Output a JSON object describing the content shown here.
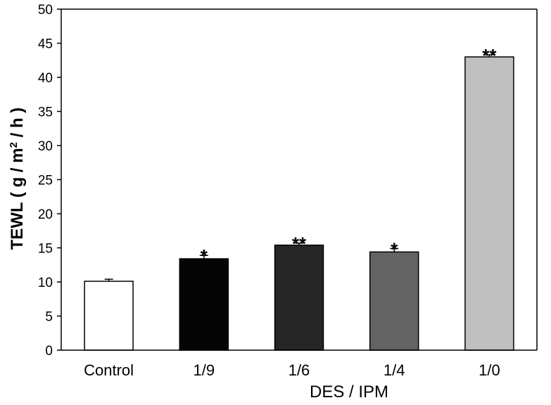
{
  "chart_data": {
    "type": "bar",
    "categories": [
      "Control",
      "1/9",
      "1/6",
      "1/4",
      "1/0"
    ],
    "values": [
      10.1,
      13.4,
      15.4,
      14.4,
      43.0
    ],
    "errors": [
      0.3,
      0.5,
      0.3,
      0.5,
      0.3
    ],
    "significance": [
      "",
      "*",
      "**",
      "*",
      "**"
    ],
    "bar_colors": [
      "#ffffff",
      "#050505",
      "#262626",
      "#636363",
      "#c0c0c0"
    ],
    "xlabel": "DES / IPM",
    "ylabel": {
      "pre": "TEWL ( g / m",
      "sup": "2",
      "post": " / h )"
    },
    "ylim": [
      0,
      50
    ],
    "yticks": [
      0,
      5,
      10,
      15,
      20,
      25,
      30,
      35,
      40,
      45,
      50
    ],
    "grid": false,
    "legend": "none"
  }
}
